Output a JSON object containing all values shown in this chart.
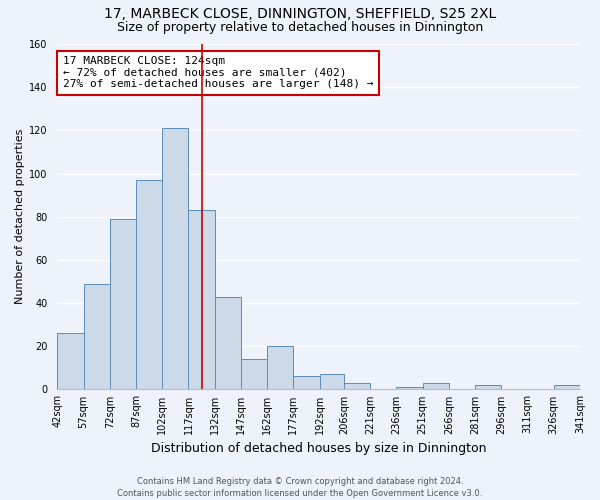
{
  "title": "17, MARBECK CLOSE, DINNINGTON, SHEFFIELD, S25 2XL",
  "subtitle": "Size of property relative to detached houses in Dinnington",
  "xlabel": "Distribution of detached houses by size in Dinnington",
  "ylabel": "Number of detached properties",
  "bin_edges": [
    42,
    57,
    72,
    87,
    102,
    117,
    132,
    147,
    162,
    177,
    192,
    206,
    221,
    236,
    251,
    266,
    281,
    296,
    311,
    326,
    341
  ],
  "bar_heights": [
    26,
    49,
    79,
    97,
    121,
    83,
    43,
    14,
    20,
    6,
    7,
    3,
    0,
    1,
    3,
    0,
    2,
    0,
    0,
    2
  ],
  "tick_labels": [
    "42sqm",
    "57sqm",
    "72sqm",
    "87sqm",
    "102sqm",
    "117sqm",
    "132sqm",
    "147sqm",
    "162sqm",
    "177sqm",
    "192sqm",
    "206sqm",
    "221sqm",
    "236sqm",
    "251sqm",
    "266sqm",
    "281sqm",
    "296sqm",
    "311sqm",
    "326sqm",
    "341sqm"
  ],
  "ylim": [
    0,
    160
  ],
  "yticks": [
    0,
    20,
    40,
    60,
    80,
    100,
    120,
    140,
    160
  ],
  "bar_color": "#ccd9e8",
  "bar_edge_color": "#5b8db8",
  "bg_color": "#eef2fb",
  "grid_color": "#ffffff",
  "property_line_x": 124.5,
  "property_line_color": "#cc0000",
  "annotation_line1": "17 MARBECK CLOSE: 124sqm",
  "annotation_line2": "← 72% of detached houses are smaller (402)",
  "annotation_line3": "27% of semi-detached houses are larger (148) →",
  "annotation_box_color": "#ffffff",
  "annotation_box_edge": "#cc0000",
  "footer_text": "Contains HM Land Registry data © Crown copyright and database right 2024.\nContains public sector information licensed under the Open Government Licence v3.0.",
  "title_fontsize": 10,
  "subtitle_fontsize": 9,
  "xlabel_fontsize": 9,
  "ylabel_fontsize": 8,
  "tick_fontsize": 7,
  "annotation_fontsize": 8,
  "footer_fontsize": 6
}
